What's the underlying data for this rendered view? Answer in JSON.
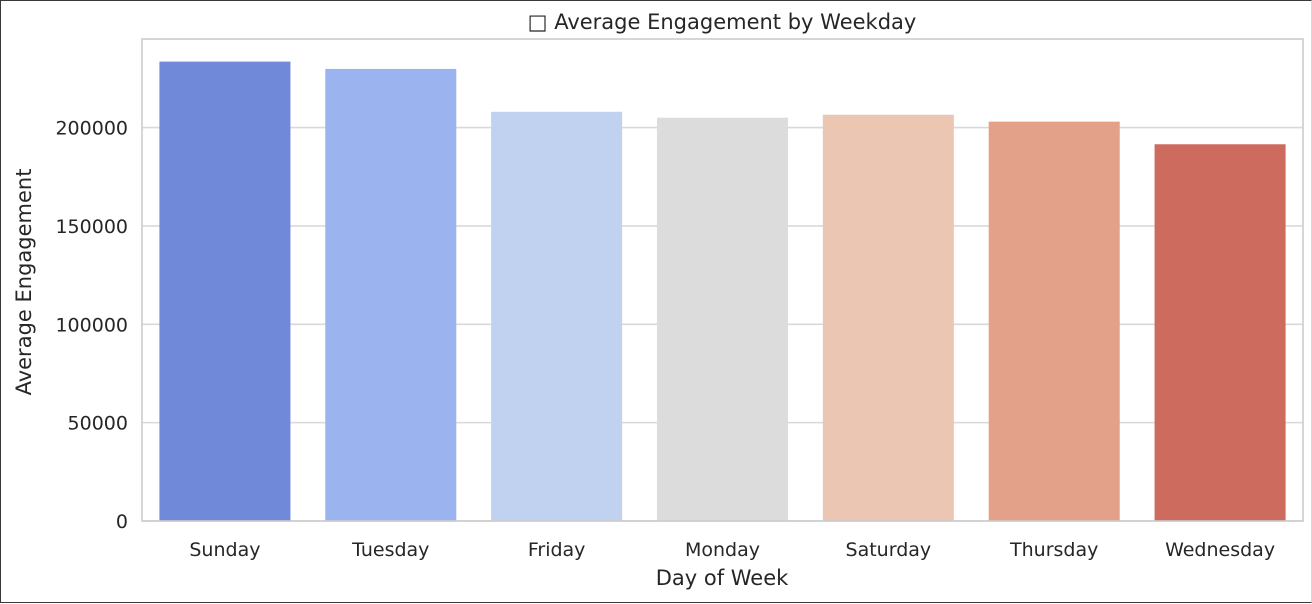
{
  "chart_data": {
    "type": "bar",
    "title": "□ Average Engagement by Weekday",
    "xlabel": "Day of Week",
    "ylabel": "Average Engagement",
    "categories": [
      "Sunday",
      "Tuesday",
      "Friday",
      "Monday",
      "Saturday",
      "Thursday",
      "Wednesday"
    ],
    "values": [
      233500,
      229800,
      208000,
      205000,
      206500,
      203000,
      191500
    ],
    "colors": [
      "#7189d9",
      "#9bb4f0",
      "#c1d1f0",
      "#dcdcdc",
      "#ebc6b2",
      "#e3a18a",
      "#cd6b5e"
    ],
    "yticks": [
      0,
      50000,
      100000,
      150000,
      200000
    ],
    "ytick_labels": [
      "0",
      "50000",
      "100000",
      "150000",
      "200000"
    ],
    "ylim": [
      0,
      245000
    ],
    "grid": true,
    "gridColor": "#d9d9d9",
    "axisColor": "#cccccc"
  }
}
